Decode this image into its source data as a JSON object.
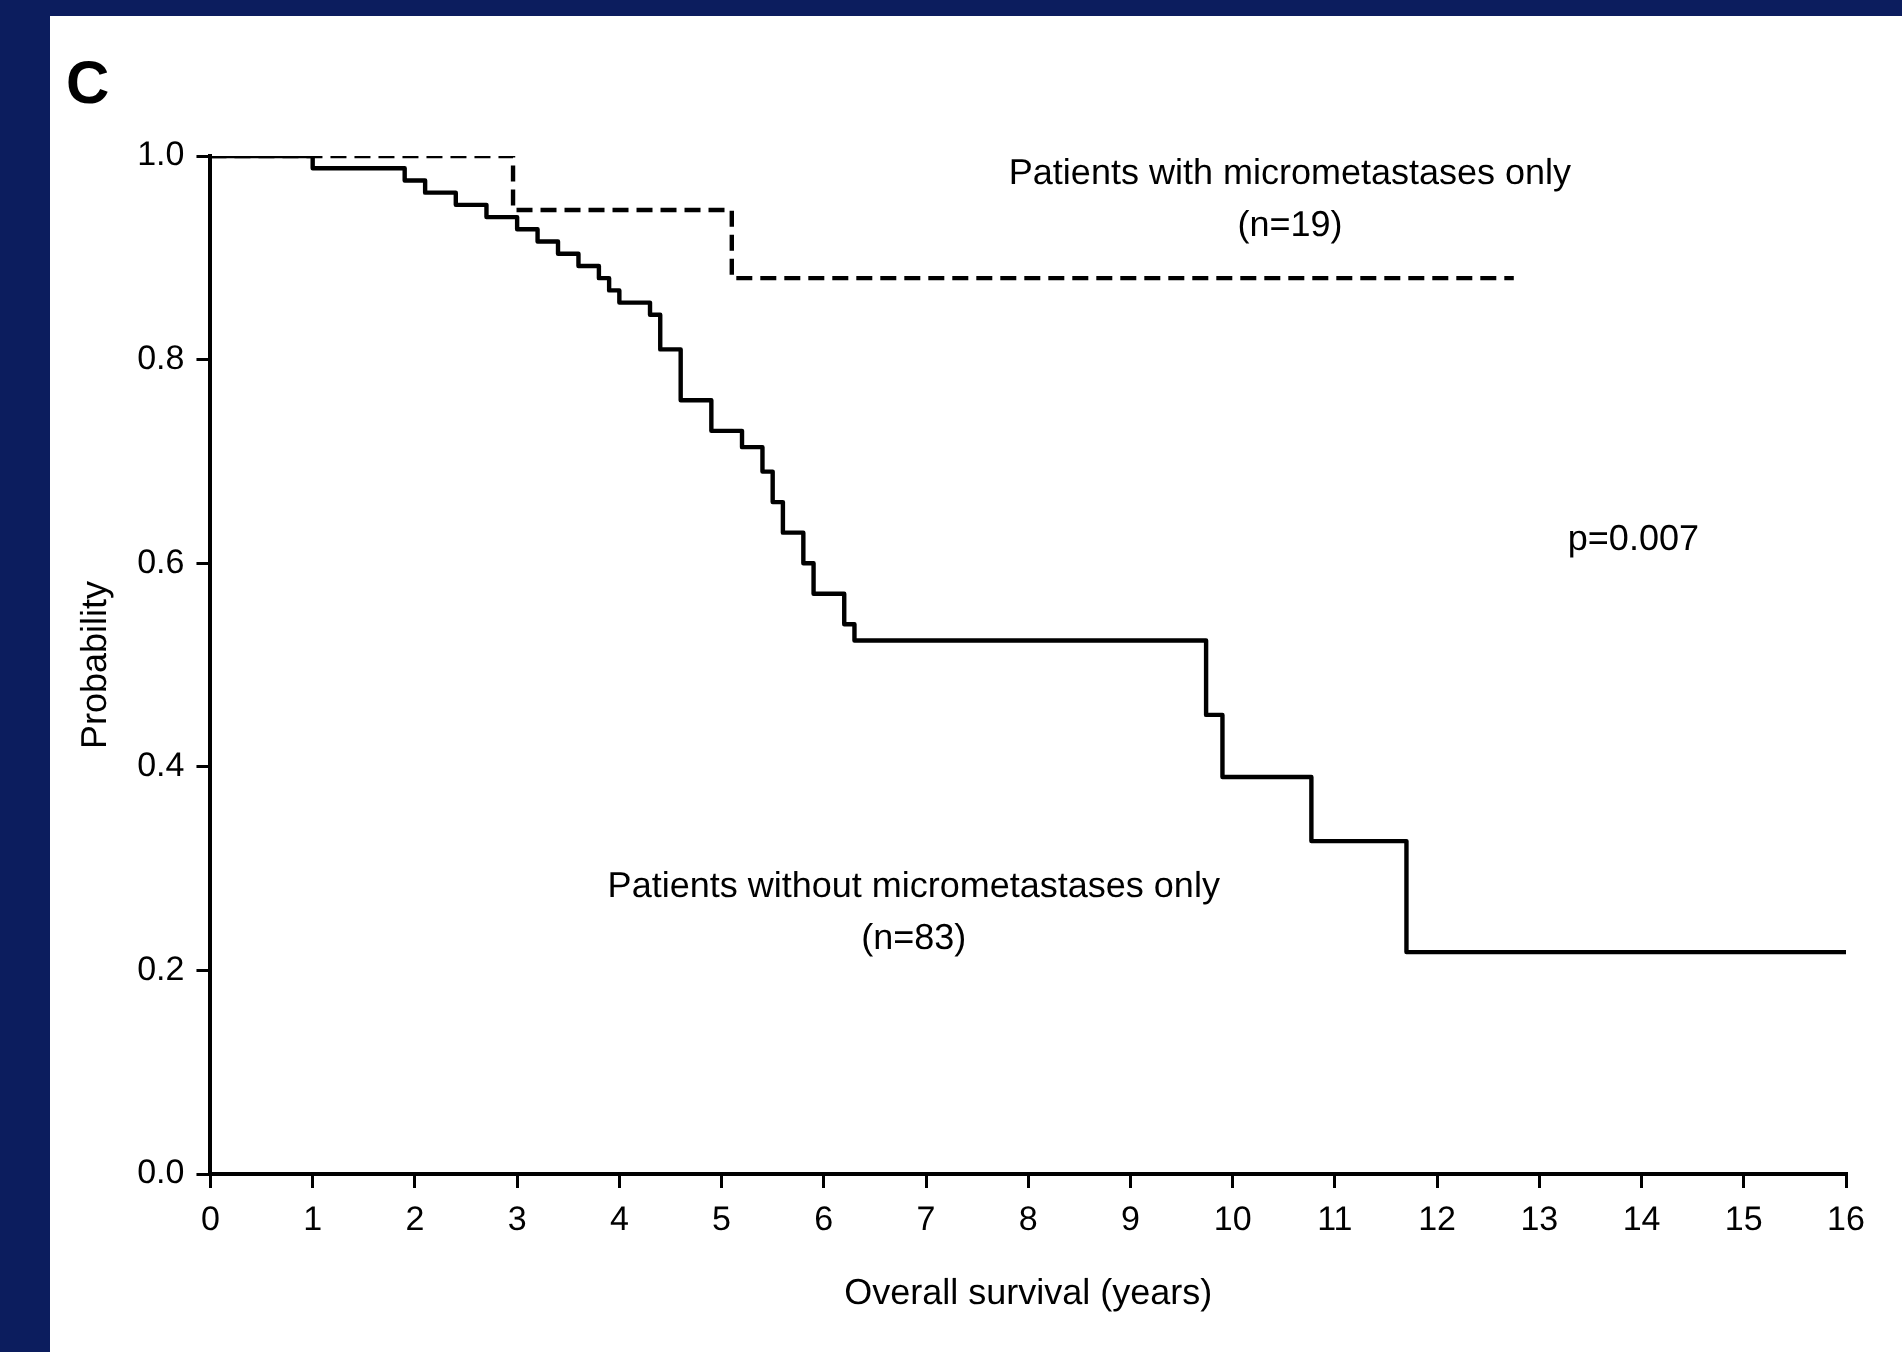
{
  "chart_data": {
    "type": "step",
    "xlabel": "Overall survival (years)",
    "ylabel": "Probability",
    "annotations": [
      "C",
      "p=0.007"
    ],
    "xlim": [
      0,
      16
    ],
    "xticks": [
      0,
      1,
      2,
      3,
      4,
      5,
      6,
      7,
      8,
      9,
      10,
      11,
      12,
      13,
      14,
      15,
      16
    ],
    "ylim": [
      0,
      1
    ],
    "yticks": [
      {
        "value": 0,
        "label": "0.0"
      },
      0.2,
      0.4,
      0.6,
      0.8,
      {
        "value": 1,
        "label": "1.0"
      }
    ],
    "grid": false,
    "legend": false,
    "marker": "none",
    "series": [
      {
        "name": "Patients with micrometastases only (n=19)",
        "color": "#000000",
        "line_style": "dashed",
        "x": [
          0,
          2.96,
          5.1,
          12.75
        ],
        "values": [
          1,
          0.947,
          0.88,
          0.88
        ]
      },
      {
        "name": "Patients without micrometastases only (n=83)",
        "color": "#000000",
        "line_style": "solid",
        "x": [
          0,
          1.0,
          1.9,
          2.1,
          2.4,
          2.7,
          3.0,
          3.2,
          3.4,
          3.6,
          3.8,
          3.9,
          4.0,
          4.3,
          4.4,
          4.6,
          4.9,
          5.2,
          5.4,
          5.5,
          5.6,
          5.8,
          5.9,
          6.2,
          6.3,
          9.74,
          9.9,
          10.77,
          11.7,
          16.0
        ],
        "values": [
          1,
          0.988,
          0.976,
          0.964,
          0.952,
          0.94,
          0.928,
          0.916,
          0.904,
          0.892,
          0.88,
          0.868,
          0.856,
          0.844,
          0.81,
          0.76,
          0.73,
          0.714,
          0.69,
          0.66,
          0.63,
          0.6,
          0.57,
          0.54,
          0.524,
          0.451,
          0.39,
          0.327,
          0.218,
          0.218
        ]
      }
    ]
  }
}
